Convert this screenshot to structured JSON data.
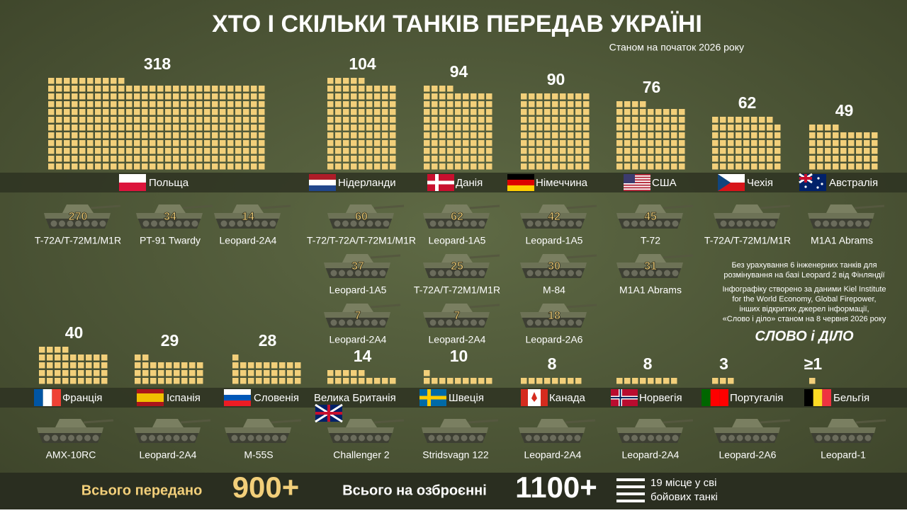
{
  "header": {
    "title": "ХТО І СКІЛЬКИ ТАНКІВ ПЕРЕДАВ УКРАЇНІ",
    "subtitle": "Станом на початок 2026 року"
  },
  "countries": [
    {
      "name": "Польща",
      "total": 318,
      "models": [
        {
          "name": "T-72A/T-72M1/M1R",
          "count": 270
        },
        {
          "name": "PT-91 Twardy",
          "count": 34
        },
        {
          "name": "Leopard-2A4",
          "count": 14
        }
      ]
    },
    {
      "name": "Нідерланди",
      "total": 104,
      "models": [
        {
          "name": "T-72/T-72A/T-72M1/M1R",
          "count": 60
        },
        {
          "name": "Leopard-1A5",
          "count": 37
        },
        {
          "name": "Leopard-2A4",
          "count": 7
        }
      ]
    },
    {
      "name": "Данія",
      "total": 94,
      "models": [
        {
          "name": "Leopard-1A5",
          "count": 62
        },
        {
          "name": "T-72A/T-72M1/M1R",
          "count": 25
        },
        {
          "name": "Leopard-2A4",
          "count": 7
        }
      ]
    },
    {
      "name": "Німеччина",
      "total": 90,
      "models": [
        {
          "name": "Leopard-1A5",
          "count": 42
        },
        {
          "name": "M-84",
          "count": 30
        },
        {
          "name": "Leopard-2A6",
          "count": 18
        }
      ]
    },
    {
      "name": "США",
      "total": 76,
      "models": [
        {
          "name": "T-72",
          "count": 45
        },
        {
          "name": "M1A1 Abrams",
          "count": 31
        }
      ]
    },
    {
      "name": "Чехія",
      "total": 62,
      "models": [
        {
          "name": "T-72A/T-72M1/M1R"
        }
      ]
    },
    {
      "name": "Австралія",
      "total": 49,
      "models": [
        {
          "name": "M1A1 Abrams"
        }
      ]
    },
    {
      "name": "Франція",
      "total": 40,
      "models": [
        {
          "name": "AMX-10RC"
        }
      ]
    },
    {
      "name": "Іспанія",
      "total": 29,
      "models": [
        {
          "name": "Leopard-2A4"
        }
      ]
    },
    {
      "name": "Словенія",
      "total": 28,
      "models": [
        {
          "name": "M-55S"
        }
      ]
    },
    {
      "name": "Велика Британія",
      "total": 14,
      "models": [
        {
          "name": "Challenger 2"
        }
      ]
    },
    {
      "name": "Швеція",
      "total": 10,
      "models": [
        {
          "name": "Stridsvagn 122"
        }
      ]
    },
    {
      "name": "Канада",
      "total": 8,
      "models": [
        {
          "name": "Leopard-2A4"
        }
      ]
    },
    {
      "name": "Норвегія",
      "total": 8,
      "models": [
        {
          "name": "Leopard-2A4"
        }
      ]
    },
    {
      "name": "Португалія",
      "total": 3,
      "models": [
        {
          "name": "Leopard-2A6"
        }
      ]
    },
    {
      "name": "Бельгія",
      "total": 1,
      "total_label": "≥1",
      "models": [
        {
          "name": "Leopard-1"
        }
      ]
    }
  ],
  "notes": [
    "Без урахування 6 інженерних танків для",
    "розмінування на базі Leopard 2 від Фінляндії",
    "Інфографіку створено за даними Kiel Institute",
    "for the World Economy, Global Firepower,",
    "інших відкритих джерел інформації,",
    "«Слово і діло» станом на 8 червня 2026 року"
  ],
  "logo": "СЛОВО і ДІЛО",
  "footer": {
    "transferred_label": "Всього передано",
    "transferred": "900+",
    "arsenal_label": "Всього на озброєнні",
    "arsenal": "1100+",
    "rank": [
      "19 місце у сві",
      "бойових танкі"
    ]
  }
}
